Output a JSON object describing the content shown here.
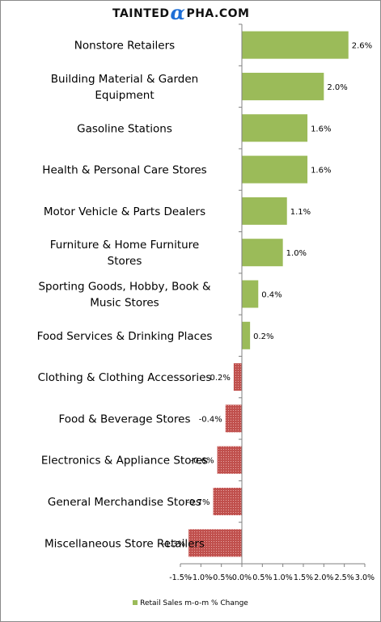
{
  "brand": {
    "part1": "TAINTED",
    "alpha": "α",
    "part2": "PHA.COM"
  },
  "colors": {
    "positive": "#9bbb59",
    "negative": "#c0504d",
    "axis": "#808080"
  },
  "chart_data": {
    "type": "bar",
    "orientation": "horizontal",
    "categories": [
      [
        "Nonstore Retailers"
      ],
      [
        "Building Material & Garden",
        "Equipment"
      ],
      [
        "Gasoline Stations"
      ],
      [
        "Health & Personal Care Stores"
      ],
      [
        "Motor Vehicle & Parts Dealers"
      ],
      [
        "Furniture & Home Furniture",
        "Stores"
      ],
      [
        "Sporting Goods, Hobby, Book &",
        "Music Stores"
      ],
      [
        "Food Services & Drinking Places"
      ],
      [
        "Clothing & Clothing Accessories"
      ],
      [
        "Food & Beverage Stores"
      ],
      [
        "Electronics & Appliance Stores"
      ],
      [
        "General Merchandise Stores"
      ],
      [
        "Miscellaneous Store Retailers"
      ]
    ],
    "values": [
      2.6,
      2.0,
      1.6,
      1.6,
      1.1,
      1.0,
      0.4,
      0.2,
      -0.2,
      -0.4,
      -0.6,
      -0.7,
      -1.3
    ],
    "data_labels": [
      "2.6%",
      "2.0%",
      "1.6%",
      "1.6%",
      "1.1%",
      "1.0%",
      "0.4%",
      "0.2%",
      "-0.2%",
      "-0.4%",
      "-0.6%",
      "-0.7%",
      "-1.3%"
    ],
    "xlim": [
      -1.5,
      3.0
    ],
    "x_ticks": [
      -1.5,
      -1.0,
      -0.5,
      0.0,
      0.5,
      1.0,
      1.5,
      2.0,
      2.5,
      3.0
    ],
    "x_tick_labels": [
      "-1.5%",
      "-1.0%",
      "-0.5%",
      "0.0%",
      "0.5%",
      "1.0%",
      "1.5%",
      "2.0%",
      "2.5%",
      "3.0%"
    ],
    "legend": "Retail Sales m-o-m % Change",
    "legend_position": "bottom",
    "grid": false
  }
}
